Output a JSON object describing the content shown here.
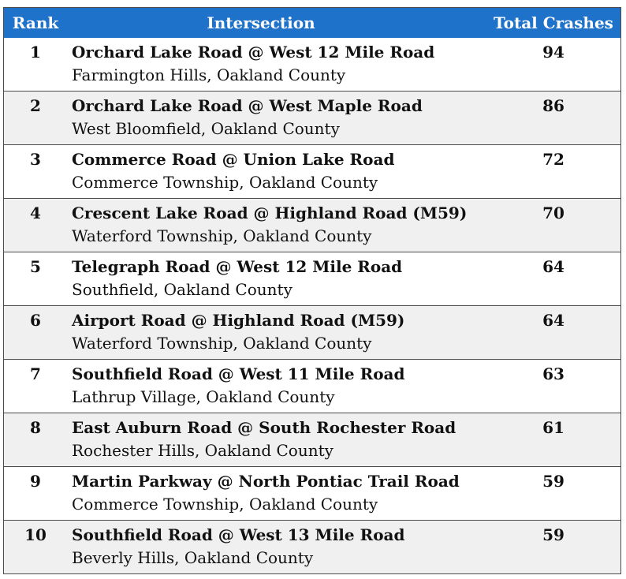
{
  "table": {
    "headers": {
      "rank": "Rank",
      "intersection": "Intersection",
      "total": "Total Crashes"
    },
    "rows": [
      {
        "rank": "1",
        "name": "Orchard Lake Road @ West 12 Mile Road",
        "location": "Farmington Hills, Oakland County",
        "total": "94"
      },
      {
        "rank": "2",
        "name": "Orchard Lake Road @ West Maple Road",
        "location": "West Bloomfield, Oakland County",
        "total": "86"
      },
      {
        "rank": "3",
        "name": "Commerce Road @ Union Lake Road",
        "location": "Commerce Township, Oakland County",
        "total": "72"
      },
      {
        "rank": "4",
        "name": "Crescent Lake Road @ Highland Road (M59)",
        "location": "Waterford Township, Oakland County",
        "total": "70"
      },
      {
        "rank": "5",
        "name": "Telegraph Road @ West 12 Mile Road",
        "location": "Southfield, Oakland County",
        "total": "64"
      },
      {
        "rank": "6",
        "name": "Airport Road @ Highland Road (M59)",
        "location": "Waterford Township, Oakland County",
        "total": "64"
      },
      {
        "rank": "7",
        "name": "Southfield Road @ West 11 Mile Road",
        "location": "Lathrup Village, Oakland County",
        "total": "63"
      },
      {
        "rank": "8",
        "name": "East Auburn Road @ South Rochester Road",
        "location": "Rochester Hills, Oakland County",
        "total": "61"
      },
      {
        "rank": "9",
        "name": "Martin Parkway @ North Pontiac Trail Road",
        "location": "Commerce Township, Oakland County",
        "total": "59"
      },
      {
        "rank": "10",
        "name": "Southfield Road @ West 13 Mile Road",
        "location": "Beverly Hills, Oakland County",
        "total": "59"
      }
    ]
  },
  "colors": {
    "header_bg": "#1f72c9",
    "header_text": "#ffffff",
    "alt_row_bg": "#f0f0f0",
    "border": "#4a4a4a"
  }
}
